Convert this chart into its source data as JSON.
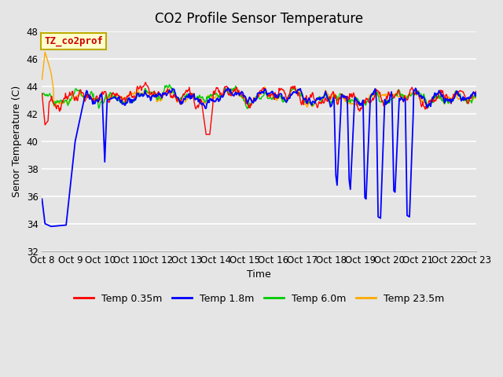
{
  "title": "CO2 Profile Sensor Temperature",
  "ylabel": "Senor Temperature (C)",
  "xlabel": "Time",
  "ylim": [
    32,
    48
  ],
  "yticks": [
    32,
    34,
    36,
    38,
    40,
    42,
    44,
    46,
    48
  ],
  "xtick_labels": [
    "Oct 8",
    "Oct 9",
    "Oct 10",
    "Oct 11",
    "Oct 12",
    "Oct 13",
    "Oct 14",
    "Oct 15",
    "Oct 16",
    "Oct 17",
    "Oct 18",
    "Oct 19",
    "Oct 20",
    "Oct 21",
    "Oct 22",
    "Oct 23"
  ],
  "series_colors": [
    "#ff0000",
    "#0000ff",
    "#00cc00",
    "#ffaa00"
  ],
  "series_labels": [
    "Temp 0.35m",
    "Temp 1.8m",
    "Temp 6.0m",
    "Temp 23.5m"
  ],
  "legend_label": "TZ_co2prof",
  "legend_label_color": "#cc0000",
  "legend_box_facecolor": "#ffffcc",
  "legend_box_edgecolor": "#bbaa00",
  "background_color": "#e5e5e5",
  "grid_color": "#ffffff",
  "title_fontsize": 12,
  "axis_fontsize": 9,
  "tick_fontsize": 8.5,
  "n_points": 720,
  "seed": 42
}
